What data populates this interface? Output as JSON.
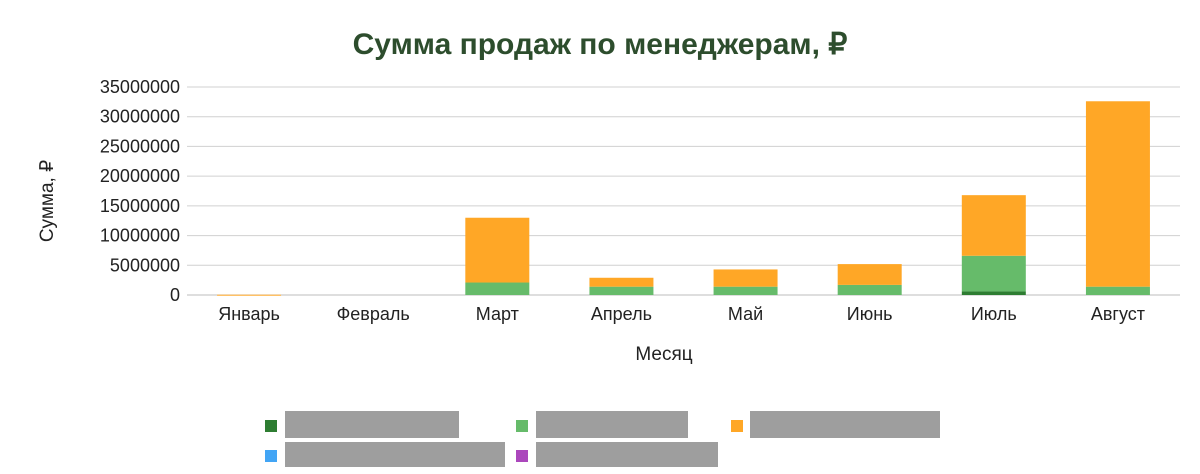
{
  "chart_data": {
    "type": "bar",
    "stacked": true,
    "title": "Сумма продаж по менеджерам, ₽",
    "xlabel": "Месяц",
    "ylabel": "Сумма, ₽",
    "ylim": [
      0,
      35000000
    ],
    "yticks": [
      "0",
      "5000000",
      "10000000",
      "15000000",
      "20000000",
      "25000000",
      "30000000",
      "35000000"
    ],
    "grid": true,
    "legend_position": "bottom",
    "categories": [
      "Январь",
      "Февраль",
      "Март",
      "Апрель",
      "Май",
      "Июнь",
      "Июль",
      "Август"
    ],
    "series": [
      {
        "color": "#2e7d32",
        "values": [
          0,
          0,
          0,
          0,
          0,
          0,
          600000,
          0
        ]
      },
      {
        "color": "#66bb6a",
        "values": [
          0,
          0,
          2100000,
          1400000,
          1400000,
          1700000,
          6000000,
          1400000
        ]
      },
      {
        "color": "#ffa726",
        "values": [
          50000,
          0,
          10900000,
          1500000,
          2900000,
          3500000,
          10200000,
          31200000
        ]
      },
      {
        "color": "#42a5f5",
        "values": [
          0,
          0,
          0,
          0,
          0,
          0,
          0,
          0
        ]
      },
      {
        "color": "#ab47bc",
        "values": [
          0,
          0,
          0,
          0,
          0,
          0,
          0,
          0
        ]
      }
    ]
  },
  "colors": {
    "grid": "#d0d0d0",
    "axis": "#bdbdbd",
    "legend_label_placeholder": "#9e9e9e"
  }
}
